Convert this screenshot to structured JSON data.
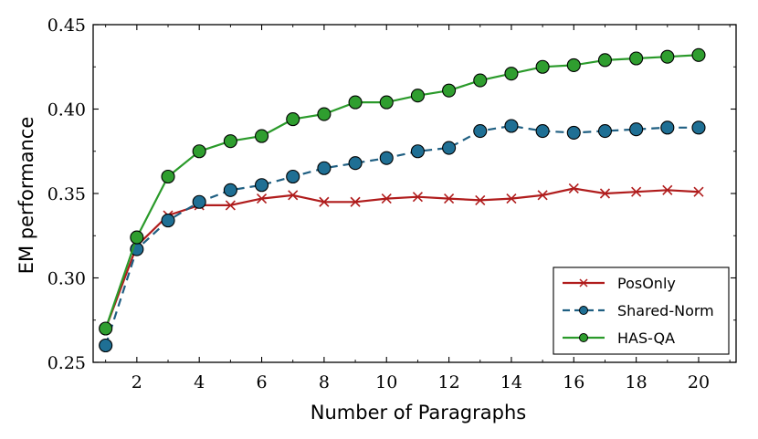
{
  "chart_data": {
    "type": "line",
    "xlabel": "Number of Paragraphs",
    "ylabel": "EM performance",
    "xlim": [
      0.6,
      21.2
    ],
    "ylim": [
      0.25,
      0.45
    ],
    "xticks": [
      2,
      4,
      6,
      8,
      10,
      12,
      14,
      16,
      18,
      20
    ],
    "yticks": [
      0.25,
      0.3,
      0.35,
      0.4,
      0.45
    ],
    "ytick_labels": [
      "0.25",
      "0.30",
      "0.35",
      "0.40",
      "0.45"
    ],
    "grid": false,
    "legend_position": "bottom-right",
    "x": [
      1,
      2,
      3,
      4,
      5,
      6,
      7,
      8,
      9,
      10,
      11,
      12,
      13,
      14,
      15,
      16,
      17,
      18,
      19,
      20
    ],
    "series": [
      {
        "name": "PosOnly",
        "color": "#b01c1c",
        "line_style": "solid",
        "marker": "x",
        "values": [
          0.27,
          0.319,
          0.337,
          0.343,
          0.343,
          0.347,
          0.349,
          0.345,
          0.345,
          0.347,
          0.348,
          0.347,
          0.346,
          0.347,
          0.349,
          0.353,
          0.35,
          0.351,
          0.352,
          0.351
        ]
      },
      {
        "name": "Shared-Norm",
        "color": "#1f5f82",
        "marker_color": "#1f6f94",
        "line_style": "dashed",
        "marker": "circle",
        "values": [
          0.26,
          0.317,
          0.334,
          0.345,
          0.352,
          0.355,
          0.36,
          0.365,
          0.368,
          0.371,
          0.375,
          0.377,
          0.387,
          0.39,
          0.387,
          0.386,
          0.387,
          0.388,
          0.389,
          0.389
        ]
      },
      {
        "name": "HAS-QA",
        "color": "#2a9a2a",
        "marker_color": "#2f9e2f",
        "line_style": "solid",
        "marker": "circle",
        "values": [
          0.27,
          0.324,
          0.36,
          0.375,
          0.381,
          0.384,
          0.394,
          0.397,
          0.404,
          0.404,
          0.408,
          0.411,
          0.417,
          0.421,
          0.425,
          0.426,
          0.429,
          0.43,
          0.431,
          0.432
        ]
      }
    ]
  }
}
